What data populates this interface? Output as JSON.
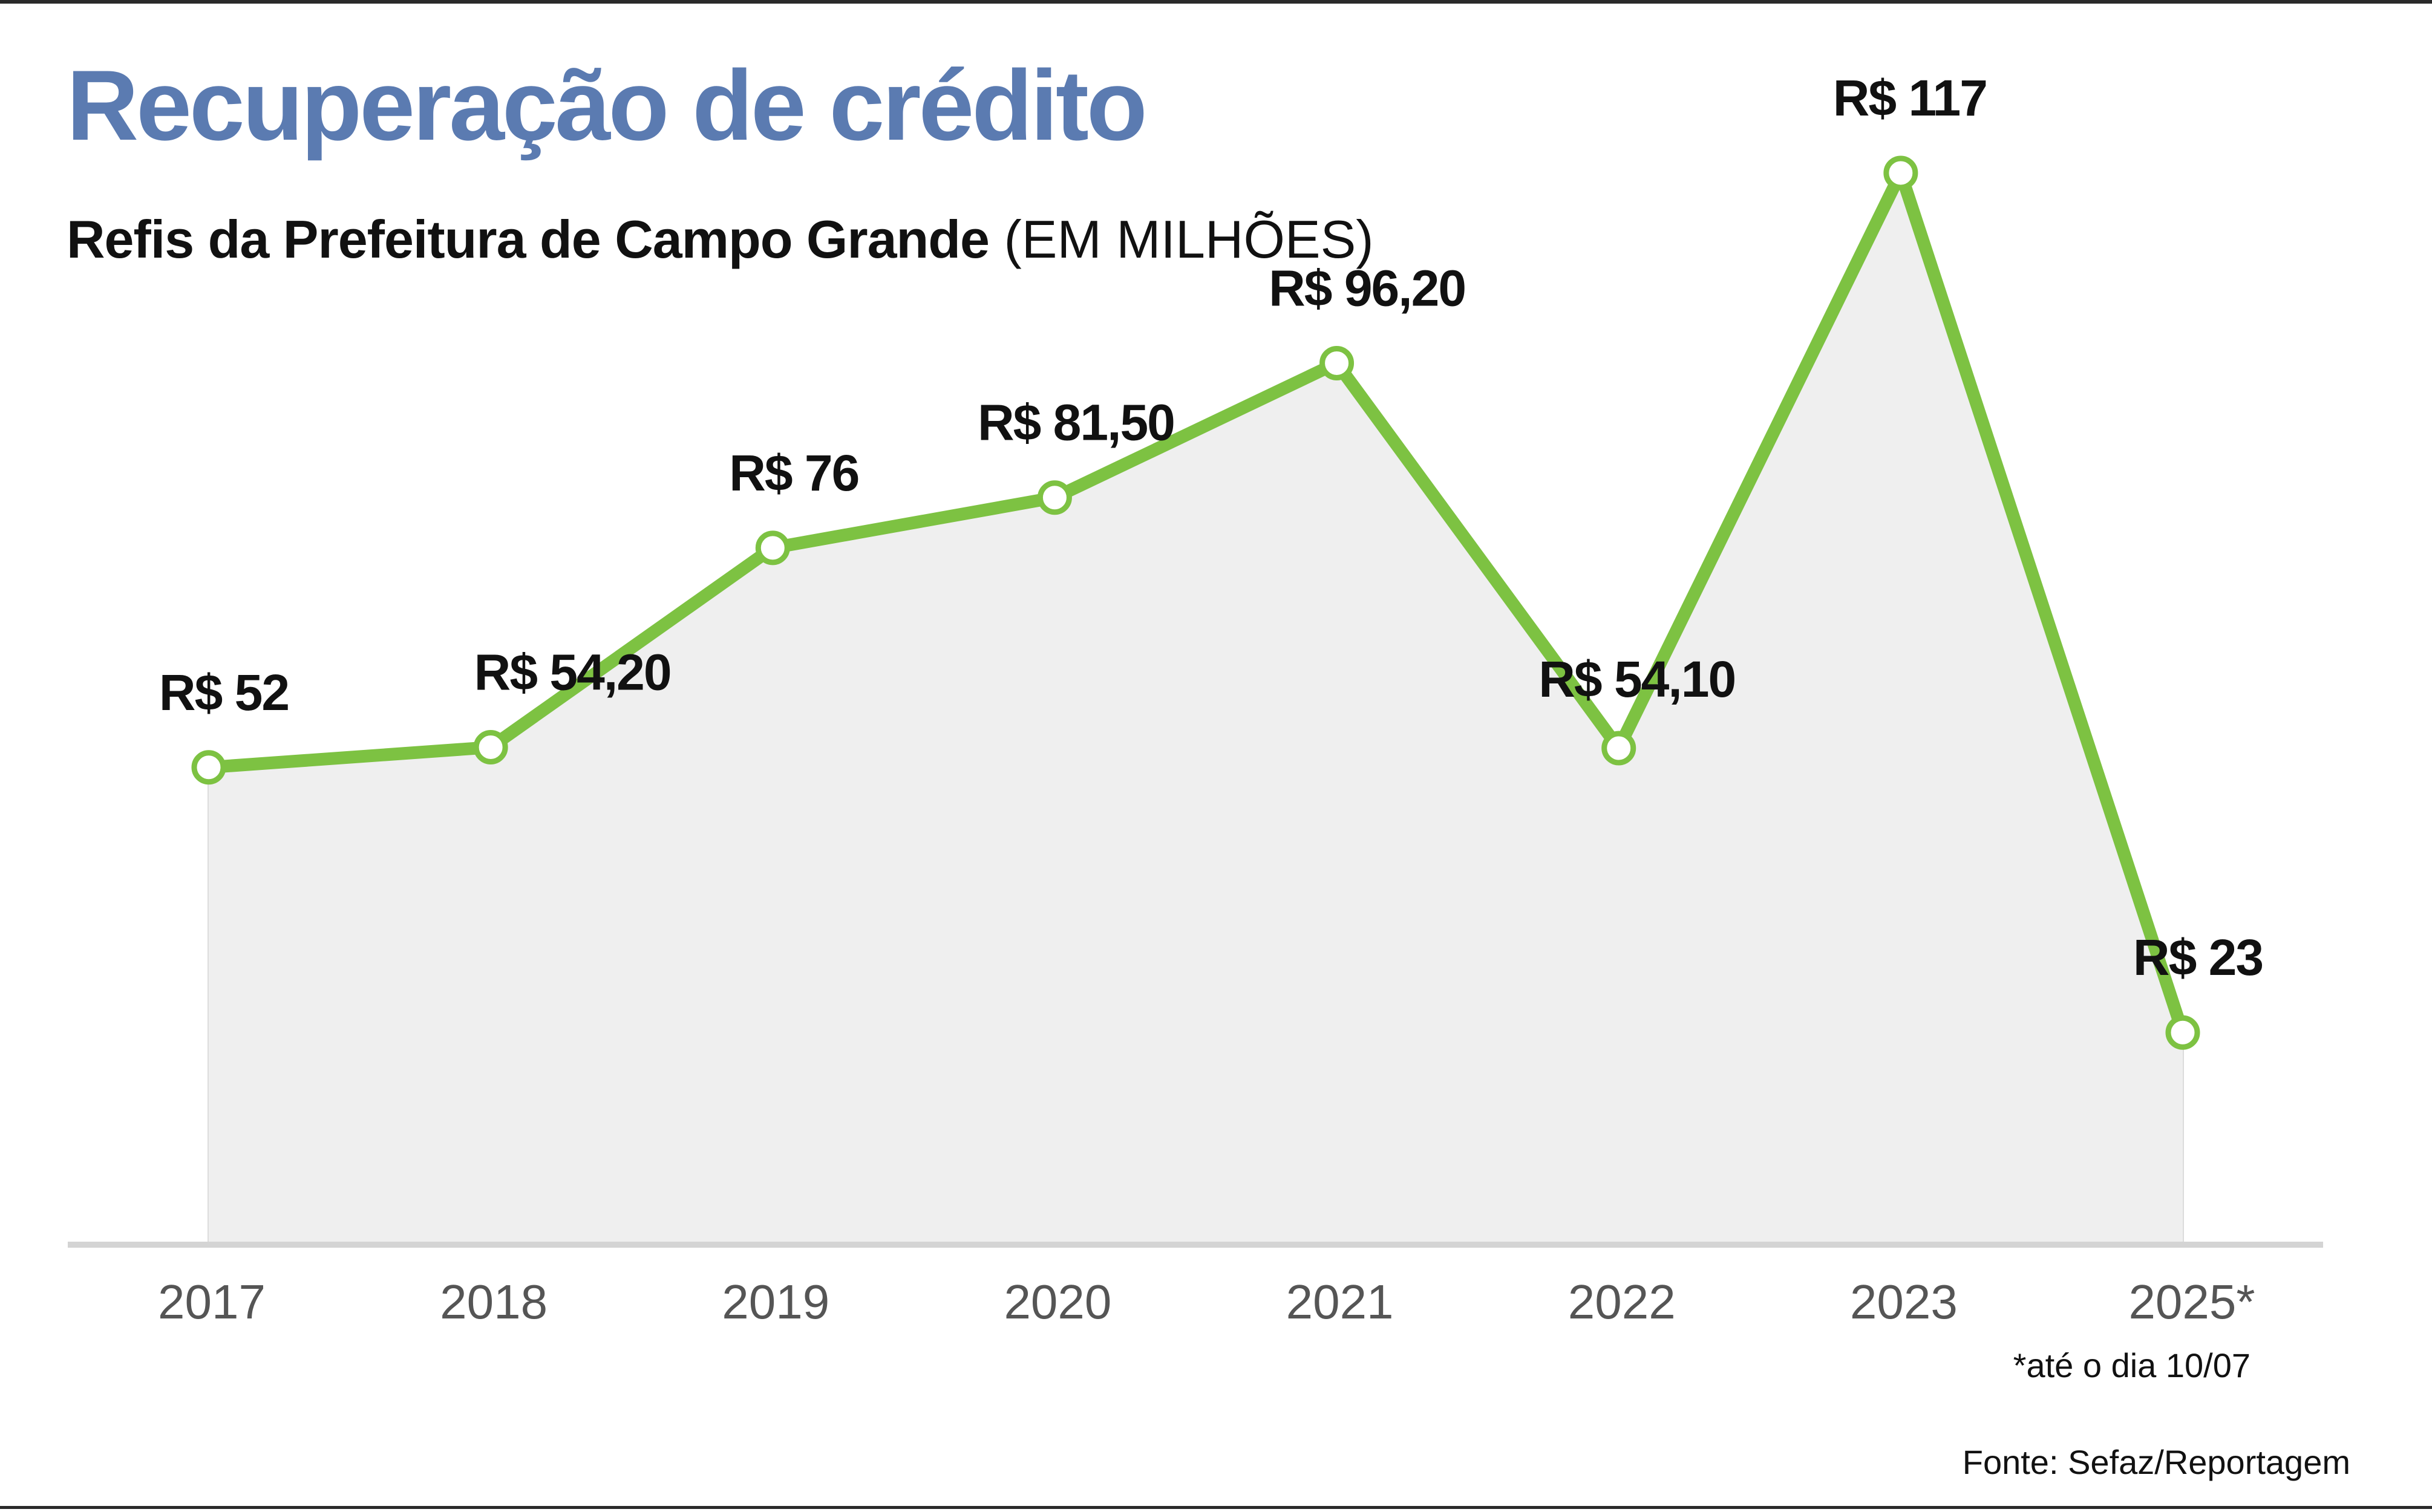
{
  "title": "Recuperação de crédito",
  "subtitle_main": "Refis da Prefeitura de Campo Grande",
  "subtitle_unit": "(EM MILHÕES)",
  "note": "*até o dia 10/07",
  "source": "Fonte: Sefaz/Reportagem",
  "colors": {
    "title": "#5b7bb1",
    "line": "#7dc242",
    "area": "#efefef",
    "grid": "#dcdcdc",
    "axis": "#d4d4d4",
    "tick_text": "#555555",
    "label_text": "#111111"
  },
  "chart_data": {
    "type": "line",
    "title": "Refis da Prefeitura de Campo Grande",
    "xlabel": "",
    "ylabel": "",
    "ylim": [
      0,
      125
    ],
    "grid": "vertical at each year",
    "legend": "none",
    "categories": [
      "2017",
      "2018",
      "2019",
      "2020",
      "2021",
      "2022",
      "2023",
      "2025*"
    ],
    "series": [
      {
        "values": [
          52,
          54.2,
          76,
          81.5,
          96.2,
          54.1,
          117,
          23
        ],
        "labels": [
          "R$ 52",
          "R$ 54,20",
          "R$ 76",
          "R$ 81,50",
          "R$ 96,20",
          "R$ 54,10",
          "R$ 117",
          "R$ 23"
        ]
      }
    ]
  }
}
